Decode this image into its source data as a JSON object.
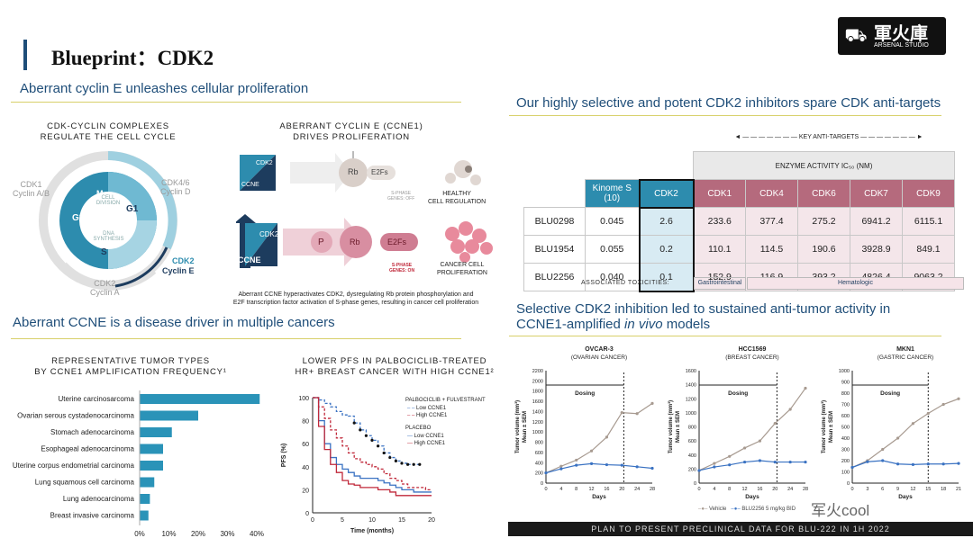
{
  "page": {
    "title": "Blueprint：CDK2",
    "logo_text": "軍火庫",
    "logo_sub": "ARSENAL STUDIO",
    "watermark": "军火cool"
  },
  "left": {
    "heading1": "Aberrant cyclin E unleashes cellular proliferation",
    "cycle_title": "CDK-CYCLIN COMPLEXES\nREGULATE THE CELL CYCLE",
    "cycle": {
      "m": "M",
      "division": "CELL\nDIVISION",
      "g1": "G1",
      "g2": "G2",
      "s": "S",
      "synthesis": "DNA\nSYNTHESIS",
      "cdk1": "CDK1\nCyclin A/B",
      "cdk46": "CDK4/6\nCyclin D",
      "cdk2a": "CDK2\nCyclin A",
      "cdk2e_a": "CDK2",
      "cdk2e_b": "Cyclin E"
    },
    "ccne_title": "ABERRANT CYCLIN E (CCNE1)\nDRIVES PROLIFERATION",
    "path": {
      "cdk2": "CDK2",
      "ccne": "CCNE",
      "rb": "Rb",
      "e2fs": "E2Fs",
      "p": "P",
      "off": "S-PHASE\nGENES: OFF",
      "on": "S-PHASE\nGENES: ON",
      "healthy": "HEALTHY\nCELL REGULATION",
      "cancer": "CANCER CELL\nPROLIFERATION"
    },
    "caption": "Aberrant CCNE hyperactivates CDK2, dysregulating Rb protein phosphorylation and\nE2F transcription factor activation of S-phase genes, resulting in cancer cell proliferation",
    "heading2": "Aberrant CCNE is a disease driver in multiple cancers",
    "bar_title": "REPRESENTATIVE TUMOR TYPES\nBY CCNE1 AMPLIFICATION FREQUENCY¹",
    "pfs_title": "LOWER PFS IN PALBOCICLIB-TREATED\nHR+ BREAST CANCER WITH HIGH CCNE1²"
  },
  "chart_data": [
    {
      "type": "bar",
      "orientation": "horizontal",
      "categories": [
        "Uterine carcinosarcoma",
        "Ovarian serous cystadenocarcinoma",
        "Stomach adenocarcinoma",
        "Esophageal adenocarcinoma",
        "Uterine corpus endometrial carcinoma",
        "Lung squamous cell carcinoma",
        "Lung adenocarcinoma",
        "Breast invasive carcinoma"
      ],
      "values": [
        41,
        20,
        11,
        8,
        8,
        5,
        3.5,
        3
      ],
      "xlim": [
        0,
        40
      ],
      "ticks": [
        "0%",
        "10%",
        "20%",
        "30%",
        "40%"
      ]
    },
    {
      "type": "line",
      "xlabel": "Time (months)",
      "ylabel": "PFS (%)",
      "xticks": [
        0,
        5,
        10,
        15,
        20
      ],
      "yticks": [
        0,
        20,
        40,
        60,
        80,
        100
      ],
      "legend": {
        "group1": "PALBOCICLIB + FULVESTRANT",
        "low": "Low CCNE1",
        "high": "High CCNE1",
        "group2": "PLACEBO"
      },
      "series": [
        {
          "name": "Palbociclib Low CCNE1",
          "x": [
            0,
            1,
            2,
            3,
            4,
            5,
            6,
            7,
            8,
            9,
            10,
            11,
            12,
            13,
            14,
            15,
            16,
            17,
            18
          ],
          "y": [
            100,
            98,
            95,
            92,
            88,
            85,
            84,
            78,
            72,
            67,
            63,
            58,
            52,
            48,
            45,
            43,
            42,
            42,
            42
          ]
        },
        {
          "name": "Palbociclib High CCNE1",
          "x": [
            0,
            1,
            2,
            3,
            4,
            5,
            6,
            7,
            8,
            9,
            10,
            11,
            12,
            13,
            14,
            15,
            16,
            17,
            18,
            19,
            20
          ],
          "y": [
            100,
            92,
            82,
            72,
            65,
            58,
            52,
            47,
            44,
            42,
            40,
            38,
            34,
            30,
            28,
            25,
            22,
            22,
            22,
            20,
            20
          ]
        },
        {
          "name": "Placebo Low CCNE1",
          "x": [
            0,
            1,
            2,
            3,
            4,
            5,
            6,
            7,
            8,
            9,
            10,
            11,
            12,
            13,
            14,
            15,
            16,
            17,
            18,
            19,
            20
          ],
          "y": [
            100,
            80,
            60,
            48,
            42,
            38,
            35,
            32,
            30,
            30,
            30,
            28,
            26,
            24,
            22,
            20,
            20,
            18,
            18,
            18,
            18
          ]
        },
        {
          "name": "Placebo High CCNE1",
          "x": [
            0,
            1,
            2,
            3,
            4,
            5,
            6,
            7,
            8,
            9,
            10,
            11,
            12,
            13,
            14,
            15,
            16,
            17,
            18,
            19,
            20
          ],
          "y": [
            100,
            75,
            55,
            42,
            35,
            28,
            25,
            24,
            22,
            22,
            22,
            20,
            20,
            18,
            15,
            15,
            15,
            15,
            15,
            15,
            15
          ]
        }
      ]
    },
    {
      "type": "table",
      "title": "Enzyme activity",
      "columns": [
        "Kinome S (10)",
        "CDK2",
        "CDK1",
        "CDK4",
        "CDK6",
        "CDK7",
        "CDK9"
      ],
      "rows": [
        {
          "name": "BLU0298",
          "values": [
            "0.045",
            "2.6",
            "233.6",
            "377.4",
            "275.2",
            "6941.2",
            "6115.1"
          ]
        },
        {
          "name": "BLU1954",
          "values": [
            "0.055",
            "0.2",
            "110.1",
            "114.5",
            "190.6",
            "3928.9",
            "849.1"
          ]
        },
        {
          "name": "BLU2256",
          "values": [
            "0.040",
            "0.1",
            "152.9",
            "116.9",
            "393.2",
            "4826.4",
            "9063.2"
          ]
        }
      ]
    },
    {
      "type": "line",
      "title": "OVCAR-3",
      "subtitle": "(OVARIAN CANCER)",
      "xticks": [
        0,
        4,
        8,
        12,
        16,
        20,
        24,
        28
      ],
      "yticks": [
        0,
        200,
        400,
        600,
        800,
        1000,
        1200,
        1400,
        1600,
        1800,
        2000,
        2200
      ],
      "series": [
        {
          "name": "Vehicle",
          "x": [
            0,
            4,
            8,
            12,
            16,
            20,
            24,
            28
          ],
          "y": [
            200,
            330,
            450,
            630,
            900,
            1380,
            1360,
            1560
          ]
        },
        {
          "name": "BLU2256 5 mg/kg BID",
          "x": [
            0,
            4,
            8,
            12,
            16,
            20,
            24,
            28
          ],
          "y": [
            200,
            280,
            350,
            380,
            360,
            350,
            320,
            290
          ]
        }
      ]
    },
    {
      "type": "line",
      "title": "HCC1569",
      "subtitle": "(BREAST CANCER)",
      "xticks": [
        0,
        4,
        8,
        12,
        16,
        20,
        24,
        28
      ],
      "yticks": [
        0,
        200,
        400,
        600,
        800,
        1000,
        1200,
        1400,
        1600
      ],
      "series": [
        {
          "name": "Vehicle",
          "x": [
            0,
            4,
            8,
            12,
            16,
            20,
            24,
            28
          ],
          "y": [
            180,
            280,
            380,
            500,
            600,
            850,
            1050,
            1350
          ]
        },
        {
          "name": "BLU2256 5 mg/kg BID",
          "x": [
            0,
            4,
            8,
            12,
            16,
            20,
            24,
            28
          ],
          "y": [
            180,
            230,
            260,
            300,
            320,
            300,
            300,
            300
          ]
        }
      ]
    },
    {
      "type": "line",
      "title": "MKN1",
      "subtitle": "(GASTRIC CANCER)",
      "xticks": [
        0,
        3,
        6,
        9,
        12,
        15,
        18,
        21
      ],
      "yticks": [
        0,
        100,
        200,
        300,
        400,
        500,
        600,
        700,
        800,
        900,
        1000
      ],
      "series": [
        {
          "name": "Vehicle",
          "x": [
            0,
            3,
            6,
            9,
            12,
            15,
            18,
            21
          ],
          "y": [
            140,
            200,
            300,
            400,
            530,
            620,
            700,
            750
          ]
        },
        {
          "name": "BLU2256 5 mg/kg BID",
          "x": [
            0,
            3,
            6,
            9,
            12,
            15,
            18,
            21
          ],
          "y": [
            140,
            190,
            200,
            170,
            165,
            170,
            170,
            175
          ]
        }
      ]
    }
  ],
  "right": {
    "heading1": "Our highly selective and potent CDK2 inhibitors spare CDK anti-targets",
    "key_anti": "KEY ANTI-TARGETS",
    "enzyme_header": "ENZYME ACTIVITY IC₅₀ (NM)",
    "toxicities_label": "ASSOCIATED TOXICITIES:",
    "tox1": "Gastrointestinal",
    "tox2": "Hematologic",
    "heading2a": "Selective CDK2 inhibition led to sustained anti-tumor activity in",
    "heading2b": "CCNE1-amplified ",
    "heading2c": "in vivo",
    "heading2d": " models",
    "ylabel": "Tumor volume (mm³)\nMean ± SEM",
    "xlabel": "Days",
    "dosing": "Dosing",
    "legend_vehicle": "Vehicle",
    "legend_blu": "BLU2256 5 mg/kg BID",
    "footer": "PLAN TO PRESENT PRECLINICAL DATA FOR BLU-222 IN 1H 2022"
  },
  "colors": {
    "teal": "#1f8ab0",
    "gray": "#a79a90",
    "red": "#c0283a",
    "blue": "#3a72c2",
    "pink": "#b56a7d"
  }
}
